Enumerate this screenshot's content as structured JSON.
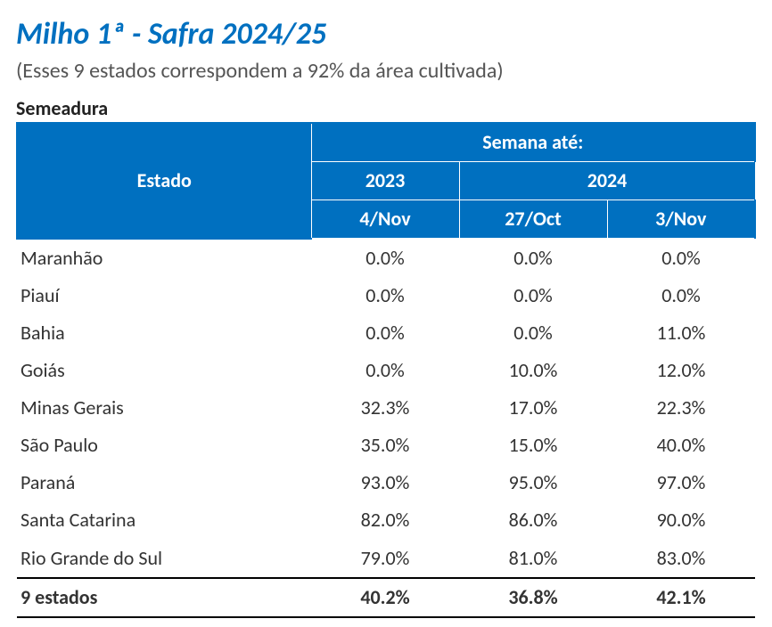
{
  "title": "Milho 1ª - Safra 2024/25",
  "subtitle": "(Esses 9 estados correspondem a 92% da área cultivada)",
  "section_label": "Semeadura",
  "colors": {
    "title": "#0070c0",
    "header_bg": "#0070c0",
    "header_fg": "#ffffff",
    "text": "#333333",
    "subtitle": "#555555",
    "rule": "#000000"
  },
  "table": {
    "header": {
      "estado": "Estado",
      "super": "Semana até:",
      "year_2023": "2023",
      "year_2024": "2024",
      "d1": "4/Nov",
      "d2": "27/Oct",
      "d3": "3/Nov"
    },
    "rows": [
      {
        "state": "Maranhão",
        "v2023_04nov": "0.0%",
        "v2024_27oct": "0.0%",
        "v2024_03nov": "0.0%"
      },
      {
        "state": "Piauí",
        "v2023_04nov": "0.0%",
        "v2024_27oct": "0.0%",
        "v2024_03nov": "0.0%"
      },
      {
        "state": "Bahia",
        "v2023_04nov": "0.0%",
        "v2024_27oct": "0.0%",
        "v2024_03nov": "11.0%"
      },
      {
        "state": "Goiás",
        "v2023_04nov": "0.0%",
        "v2024_27oct": "10.0%",
        "v2024_03nov": "12.0%"
      },
      {
        "state": "Minas Gerais",
        "v2023_04nov": "32.3%",
        "v2024_27oct": "17.0%",
        "v2024_03nov": "22.3%"
      },
      {
        "state": "São Paulo",
        "v2023_04nov": "35.0%",
        "v2024_27oct": "15.0%",
        "v2024_03nov": "40.0%"
      },
      {
        "state": "Paraná",
        "v2023_04nov": "93.0%",
        "v2024_27oct": "95.0%",
        "v2024_03nov": "97.0%"
      },
      {
        "state": "Santa Catarina",
        "v2023_04nov": "82.0%",
        "v2024_27oct": "86.0%",
        "v2024_03nov": "90.0%"
      },
      {
        "state": "Rio Grande do Sul",
        "v2023_04nov": "79.0%",
        "v2024_27oct": "81.0%",
        "v2024_03nov": "83.0%"
      }
    ],
    "total": {
      "state": "9 estados",
      "v2023_04nov": "40.2%",
      "v2024_27oct": "36.8%",
      "v2024_03nov": "42.1%"
    }
  }
}
